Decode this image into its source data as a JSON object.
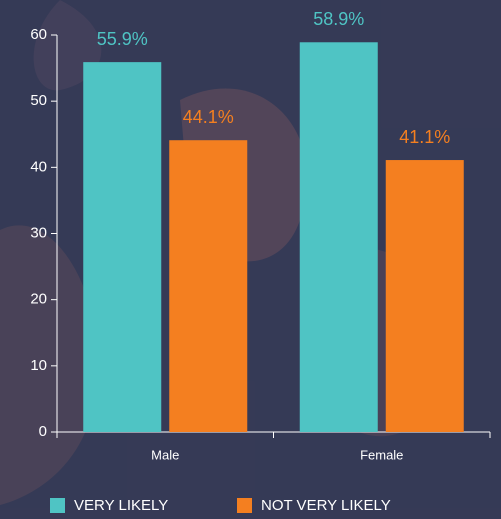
{
  "chart_data": {
    "type": "bar",
    "categories": [
      "Male",
      "Female"
    ],
    "series": [
      {
        "name": "VERY LIKELY",
        "color": "#4fc4c4",
        "values": [
          55.9,
          58.9
        ],
        "value_labels": [
          "55.9%",
          "58.9%"
        ]
      },
      {
        "name": "NOT VERY LIKELY",
        "color": "#f47f20",
        "values": [
          44.1,
          41.1
        ],
        "value_labels": [
          "44.1%",
          "41.1%"
        ]
      }
    ],
    "ylim": [
      0,
      60
    ],
    "yticks": [
      0,
      10,
      20,
      30,
      40,
      50,
      60
    ],
    "legend": "bottom"
  }
}
